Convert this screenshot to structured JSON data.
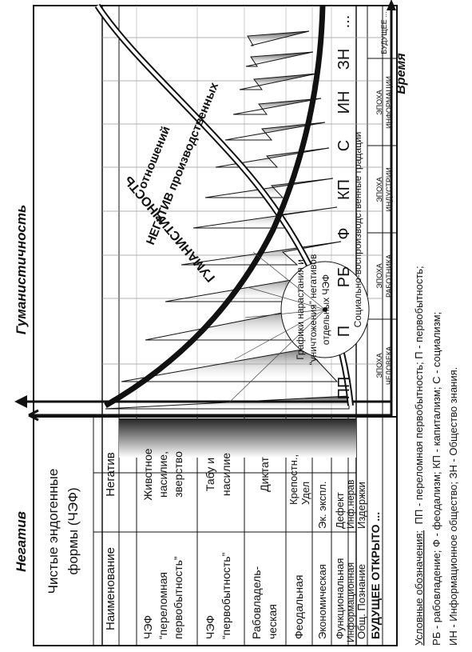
{
  "axes": {
    "humanism": "Гуманистичность",
    "negative": "Негатив",
    "time": "Время"
  },
  "table_header": {
    "forms_title_line1": "Чистые эндогенные",
    "forms_title_line2": "формы (ЧЭФ)",
    "col_name": "Наименование",
    "col_negative": "Негатив"
  },
  "rows": [
    {
      "name_line1": "ЧЭФ",
      "name_line2": "“переломная",
      "name_line3": "первобытность”",
      "neg_line1": "Животное",
      "neg_line2": "насилие,",
      "neg_line3": "зверство"
    },
    {
      "name_line1": "ЧЭФ",
      "name_line2": "“первобытность”",
      "name_line3": "",
      "neg_line1": "Табу и",
      "neg_line2": "насилие",
      "neg_line3": ""
    },
    {
      "name_line1": "Рабовладель-",
      "name_line2": "ческая",
      "name_line3": "",
      "neg_line1": "Диктат",
      "neg_line2": "",
      "neg_line3": ""
    },
    {
      "name_line1": "Феодальная",
      "name_line2": "",
      "name_line3": "",
      "neg_line1": "Крепостн.,",
      "neg_line2": "Удел",
      "neg_line3": ""
    },
    {
      "name_line1": "Экономическая",
      "name_line2": "",
      "name_line3": "",
      "neg_line1": "Эк. экспл.",
      "neg_line2": "",
      "neg_line3": ""
    },
    {
      "name_line1": "Функциональная",
      "name_line2": "",
      "name_line3": "",
      "neg_line1": "Дефект",
      "neg_line2": "",
      "neg_line3": ""
    },
    {
      "name_line1": "Информационная",
      "name_line2": "",
      "name_line3": "",
      "neg_line1": "Инф.нерав",
      "neg_line2": "",
      "neg_line3": ""
    },
    {
      "name_line1": "Общ. Познание",
      "name_line2": "",
      "name_line3": "",
      "neg_line1": "Издержки",
      "neg_line2": "",
      "neg_line3": ""
    }
  ],
  "future_open": "БУДУЩЕЕ ОТКРЫТО ...",
  "epochs": [
    {
      "line1": "ЭПОХА",
      "line2": "ЧЕЛОВЕКА"
    },
    {
      "line1": "ЭПОХА",
      "line2": "РАБОТНИКА"
    },
    {
      "line1": "ЭПОХА",
      "line2": "ИНДУСТРИИ"
    },
    {
      "line1": "ЭПОХА",
      "line2": "ИНФОРМАЦИИ"
    },
    {
      "line1": "БУДУЩЕЕ ...",
      "line2": ""
    }
  ],
  "gradation_label": "Социально-воспроизводственные градации",
  "stages": [
    "ПП",
    "П",
    "РБ",
    "Ф",
    "КП",
    "С",
    "ИН",
    "ЗН",
    "..."
  ],
  "curve_labels": {
    "humanism_curve": "ГУМАНИСТИЧНОСТЬ",
    "negative_line1": "НЕГАТИВ производственных",
    "negative_line2": "отношений"
  },
  "annotation": {
    "line1": "Графики нарастания и",
    "line2": "“уничтожения” негативов",
    "line3": "отдельных ЧЭФ"
  },
  "legend": {
    "line1_prefix": "Условные обозначения:",
    "line1_rest": "ПП - переломная первобытность; П - первобытность;",
    "line2": "РБ - рабовладение; Ф - феодализм; КП - капитализм; С - социализм;",
    "line3": "ИН - Информационное общество; ЗН - Общество знания."
  },
  "colors": {
    "ink": "#111111",
    "grid": "#999999",
    "gradient_dark": "#333333",
    "gradient_light": "#ffffff"
  }
}
